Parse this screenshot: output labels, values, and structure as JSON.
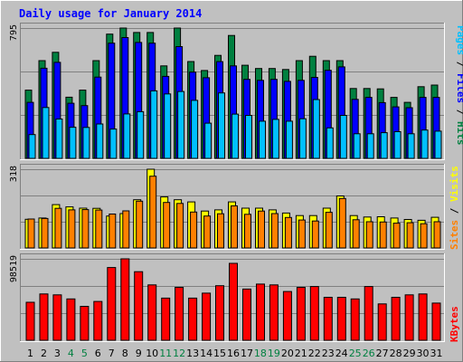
{
  "title": "Daily usage for January 2014",
  "colors": {
    "background": "#C0C0C0",
    "title": "#0000FF",
    "hits": "#008040",
    "files": "#0000FF",
    "pages": "#00C0FF",
    "visits": "#FFFF00",
    "sites": "#FF8000",
    "kbytes": "#FF0000",
    "weekend_label": "#008040",
    "weekday_label": "#000000"
  },
  "legend": {
    "pages": "Pages",
    "files": "Files",
    "hits": "Hits",
    "visits": "Visits",
    "sites": "Sites",
    "kbytes": "KBytes",
    "sep": " / "
  },
  "chart_data": [
    {
      "type": "bar",
      "panel": "hits-files-pages",
      "categories": [
        "1",
        "2",
        "3",
        "4",
        "5",
        "6",
        "7",
        "8",
        "9",
        "10",
        "11",
        "12",
        "13",
        "14",
        "15",
        "16",
        "17",
        "18",
        "19",
        "20",
        "21",
        "22",
        "23",
        "24",
        "25",
        "26",
        "27",
        "28",
        "29",
        "30",
        "31"
      ],
      "weekend_days": [
        "4",
        "5",
        "11",
        "12",
        "18",
        "19",
        "25",
        "26"
      ],
      "ymax_label": "795",
      "ylim": [
        0,
        795
      ],
      "series": [
        {
          "name": "Hits",
          "values": [
            416,
            596,
            647,
            373,
            416,
            596,
            758,
            795,
            768,
            768,
            564,
            795,
            591,
            536,
            628,
            750,
            568,
            548,
            548,
            542,
            596,
            623,
            596,
            596,
            426,
            426,
            424,
            372,
            342,
            437,
            447
          ]
        },
        {
          "name": "Files",
          "values": [
            342,
            550,
            586,
            336,
            322,
            496,
            703,
            737,
            707,
            703,
            500,
            682,
            526,
            492,
            590,
            564,
            482,
            476,
            482,
            470,
            476,
            494,
            537,
            558,
            360,
            372,
            340,
            314,
            309,
            372,
            372
          ]
        },
        {
          "name": "Pages",
          "values": [
            145,
            310,
            240,
            190,
            189,
            210,
            179,
            271,
            285,
            412,
            393,
            408,
            354,
            215,
            399,
            270,
            262,
            227,
            238,
            227,
            242,
            359,
            186,
            262,
            150,
            150,
            157,
            163,
            150,
            173,
            166
          ]
        }
      ]
    },
    {
      "type": "bar",
      "panel": "visits-sites",
      "categories": [
        "1",
        "2",
        "3",
        "4",
        "5",
        "6",
        "7",
        "8",
        "9",
        "10",
        "11",
        "12",
        "13",
        "14",
        "15",
        "16",
        "17",
        "18",
        "19",
        "20",
        "21",
        "22",
        "23",
        "24",
        "25",
        "26",
        "27",
        "28",
        "29",
        "30",
        "31"
      ],
      "ymax_label": "318",
      "ylim": [
        0,
        318
      ],
      "series": [
        {
          "name": "Visits",
          "values": [
            116,
            121,
            175,
            166,
            161,
            160,
            129,
            139,
            195,
            318,
            206,
            195,
            186,
            149,
            154,
            186,
            161,
            161,
            154,
            141,
            131,
            131,
            161,
            210,
            131,
            125,
            126,
            121,
            115,
            112,
            124
          ]
        },
        {
          "name": "Sites",
          "values": [
            117,
            119,
            160,
            154,
            155,
            153,
            137,
            150,
            189,
            290,
            184,
            180,
            145,
            129,
            138,
            170,
            136,
            149,
            139,
            123,
            113,
            109,
            144,
            200,
            114,
            106,
            105,
            100,
            102,
            98,
            106
          ]
        }
      ]
    },
    {
      "type": "bar",
      "panel": "kbytes",
      "categories": [
        "1",
        "2",
        "3",
        "4",
        "5",
        "6",
        "7",
        "8",
        "9",
        "10",
        "11",
        "12",
        "13",
        "14",
        "15",
        "16",
        "17",
        "18",
        "19",
        "20",
        "21",
        "22",
        "23",
        "24",
        "25",
        "26",
        "27",
        "28",
        "29",
        "30",
        "31"
      ],
      "ymax_label": "98519",
      "ylim": [
        0,
        98519
      ],
      "series": [
        {
          "name": "KBytes",
          "values": [
            46000,
            56000,
            55000,
            50000,
            41000,
            47000,
            88000,
            98519,
            83000,
            67000,
            51000,
            64000,
            51000,
            57000,
            66000,
            93000,
            62000,
            68000,
            67000,
            59000,
            64000,
            65000,
            52000,
            52000,
            50000,
            65000,
            44000,
            52000,
            55000,
            56000,
            45000
          ]
        }
      ]
    }
  ]
}
